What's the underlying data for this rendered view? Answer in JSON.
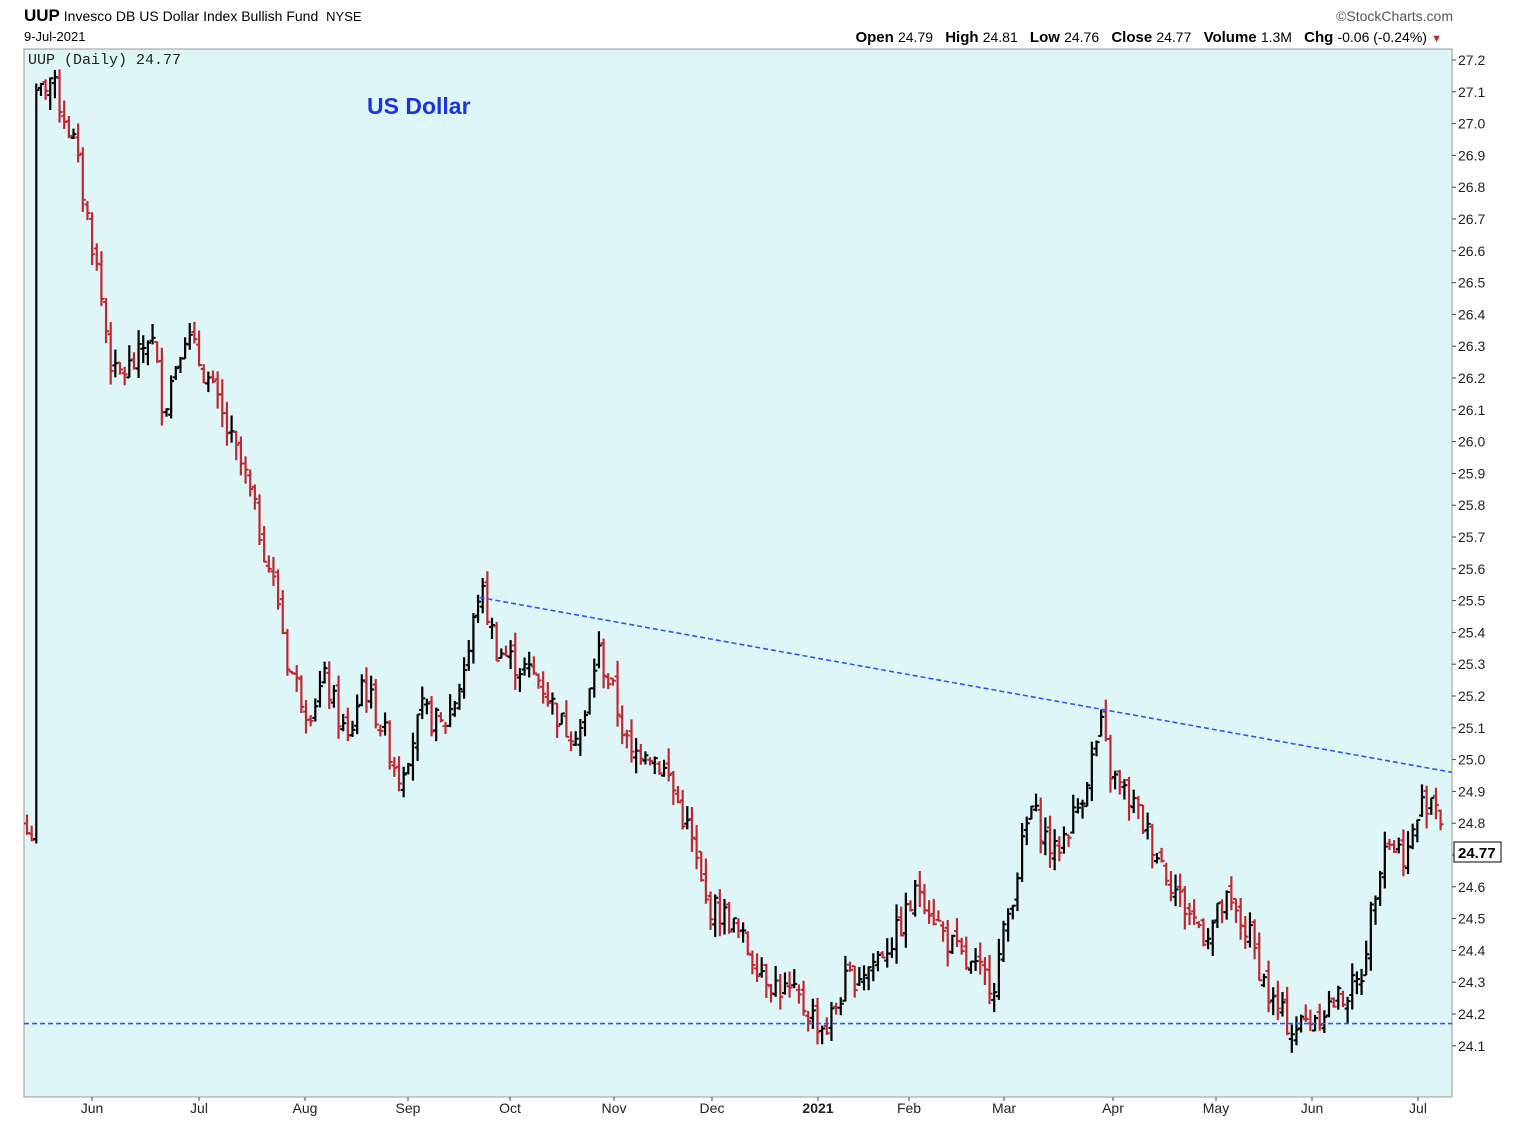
{
  "header": {
    "symbol": "UUP",
    "name": "Invesco DB US Dollar Index Bullish Fund",
    "exchange": "NYSE",
    "date": "9-Jul-2021",
    "brand": "©StockCharts.com",
    "open_label": "Open",
    "open": "24.79",
    "high_label": "High",
    "high": "24.81",
    "low_label": "Low",
    "low": "24.76",
    "close_label": "Close",
    "close": "24.77",
    "volume_label": "Volume",
    "volume": "1.3M",
    "chg_label": "Chg",
    "chg": "-0.06 (-0.24%)"
  },
  "colors": {
    "background": "#dff6f8",
    "up": "#000000",
    "down": "#c0282f",
    "trendline": "#3355ee",
    "annotation": "#1a34e0"
  },
  "chart_data": {
    "type": "ohlc-bar",
    "legend": "UUP (Daily) 24.77",
    "annotation": "US Dollar",
    "last_price": "24.77",
    "ylim": [
      24.05,
      27.22
    ],
    "y_ticks": [
      "27.2",
      "27.1",
      "27.0",
      "26.9",
      "26.8",
      "26.7",
      "26.6",
      "26.5",
      "26.4",
      "26.3",
      "26.2",
      "26.1",
      "26.0",
      "25.9",
      "25.8",
      "25.7",
      "25.6",
      "25.5",
      "25.4",
      "25.3",
      "25.2",
      "25.1",
      "25.0",
      "24.9",
      "24.8",
      "24.7",
      "24.6",
      "24.5",
      "24.4",
      "24.3",
      "24.2",
      "24.1"
    ],
    "x_ticks": [
      "Jun",
      "Jul",
      "Aug",
      "Sep",
      "Oct",
      "Nov",
      "Dec",
      "2021",
      "Feb",
      "Mar",
      "Apr",
      "May",
      "Jun",
      "Jul"
    ],
    "keypoints": [
      [
        "2020-05-15",
        27.05
      ],
      [
        "2020-05-20",
        27.15
      ],
      [
        "2020-05-27",
        26.95
      ],
      [
        "2020-06-03",
        26.55
      ],
      [
        "2020-06-08",
        26.2
      ],
      [
        "2020-06-15",
        26.25
      ],
      [
        "2020-06-19",
        26.35
      ],
      [
        "2020-06-23",
        26.1
      ],
      [
        "2020-06-29",
        26.35
      ],
      [
        "2020-07-06",
        26.2
      ],
      [
        "2020-07-13",
        26.0
      ],
      [
        "2020-07-17",
        25.9
      ],
      [
        "2020-07-22",
        25.7
      ],
      [
        "2020-07-27",
        25.5
      ],
      [
        "2020-07-30",
        25.3
      ],
      [
        "2020-08-05",
        25.15
      ],
      [
        "2020-08-10",
        25.25
      ],
      [
        "2020-08-17",
        25.05
      ],
      [
        "2020-08-21",
        25.25
      ],
      [
        "2020-08-27",
        25.1
      ],
      [
        "2020-09-01",
        24.95
      ],
      [
        "2020-09-08",
        25.15
      ],
      [
        "2020-09-14",
        25.1
      ],
      [
        "2020-09-18",
        25.2
      ],
      [
        "2020-09-22",
        25.35
      ],
      [
        "2020-09-25",
        25.55
      ],
      [
        "2020-09-30",
        25.35
      ],
      [
        "2020-10-06",
        25.3
      ],
      [
        "2020-10-13",
        25.25
      ],
      [
        "2020-10-20",
        25.1
      ],
      [
        "2020-10-26",
        25.1
      ],
      [
        "2020-10-30",
        25.35
      ],
      [
        "2020-11-04",
        25.2
      ],
      [
        "2020-11-09",
        25.0
      ],
      [
        "2020-11-13",
        25.05
      ],
      [
        "2020-11-20",
        24.95
      ],
      [
        "2020-11-27",
        24.75
      ],
      [
        "2020-12-01",
        24.55
      ],
      [
        "2020-12-08",
        24.5
      ],
      [
        "2020-12-14",
        24.4
      ],
      [
        "2020-12-21",
        24.3
      ],
      [
        "2020-12-28",
        24.25
      ],
      [
        "2021-01-06",
        24.15
      ],
      [
        "2021-01-12",
        24.3
      ],
      [
        "2021-01-19",
        24.35
      ],
      [
        "2021-01-27",
        24.45
      ],
      [
        "2021-02-03",
        24.6
      ],
      [
        "2021-02-10",
        24.45
      ],
      [
        "2021-02-17",
        24.35
      ],
      [
        "2021-02-25",
        24.3
      ],
      [
        "2021-03-02",
        24.55
      ],
      [
        "2021-03-08",
        24.85
      ],
      [
        "2021-03-15",
        24.7
      ],
      [
        "2021-03-22",
        24.85
      ],
      [
        "2021-03-29",
        25.1
      ],
      [
        "2021-04-01",
        24.95
      ],
      [
        "2021-04-08",
        24.85
      ],
      [
        "2021-04-15",
        24.7
      ],
      [
        "2021-04-22",
        24.55
      ],
      [
        "2021-04-29",
        24.45
      ],
      [
        "2021-05-05",
        24.55
      ],
      [
        "2021-05-12",
        24.45
      ],
      [
        "2021-05-18",
        24.25
      ],
      [
        "2021-05-25",
        24.15
      ],
      [
        "2021-06-01",
        24.2
      ],
      [
        "2021-06-08",
        24.25
      ],
      [
        "2021-06-14",
        24.3
      ],
      [
        "2021-06-17",
        24.5
      ],
      [
        "2021-06-21",
        24.75
      ],
      [
        "2021-06-28",
        24.7
      ],
      [
        "2021-07-02",
        24.85
      ],
      [
        "2021-07-06",
        24.9
      ],
      [
        "2021-07-09",
        24.77
      ]
    ],
    "trendlines": [
      {
        "from": [
          "2020-09-25",
          25.51
        ],
        "to": [
          "2021-07-09",
          24.96
        ]
      },
      {
        "from": [
          "2020-05-13",
          24.17
        ],
        "to": [
          "2021-07-09",
          24.17
        ]
      }
    ]
  }
}
